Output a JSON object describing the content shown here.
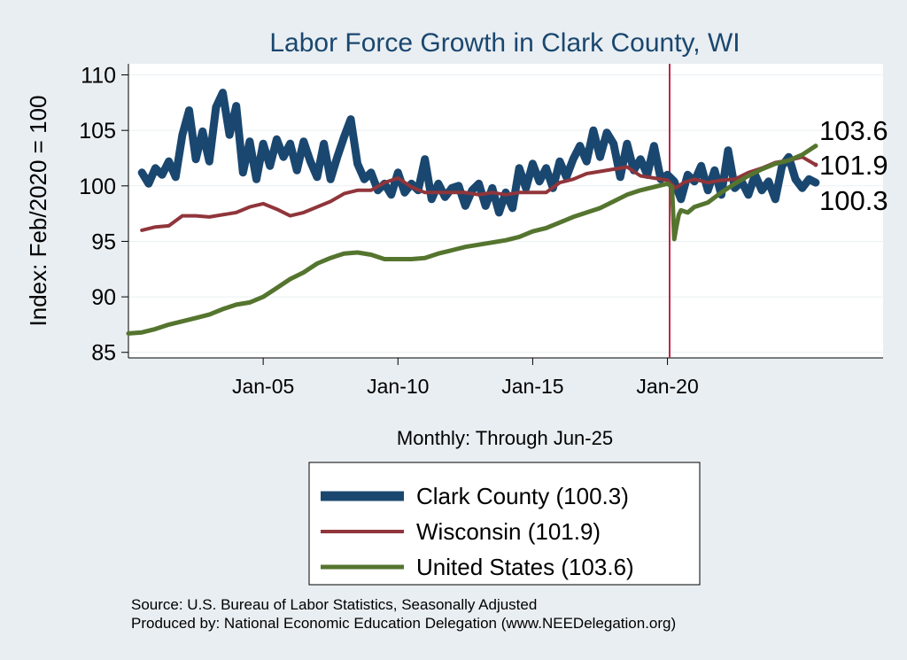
{
  "chart_data": {
    "type": "line",
    "title": "Labor Force Growth in Clark  County, WI",
    "ylabel": "Index: Feb/2020 = 100",
    "xlabel": "Monthly: Through Jun-25",
    "ylim": [
      84.5,
      111
    ],
    "y_ticks": [
      85,
      90,
      95,
      100,
      105,
      110
    ],
    "xlim": [
      2000.0,
      2028.0
    ],
    "x_ticks": [
      {
        "value": 2005.0,
        "label": "Jan-05"
      },
      {
        "value": 2010.0,
        "label": "Jan-10"
      },
      {
        "value": 2015.0,
        "label": "Jan-15"
      },
      {
        "value": 2020.0,
        "label": "Jan-20"
      }
    ],
    "vline": {
      "value": 2020.08,
      "color": "#c0264a"
    },
    "colors": {
      "background": "#e9eef2",
      "plot_bg": "#ffffff",
      "grid": "#eaf0f4"
    },
    "series": [
      {
        "name": "Clark  County",
        "legend_label": "Clark  County (100.3)",
        "end_label": "100.3",
        "color": "#1a476f",
        "width": 9,
        "x": [
          2000.5,
          2000.75,
          2001.0,
          2001.25,
          2001.5,
          2001.75,
          2002.0,
          2002.25,
          2002.5,
          2002.75,
          2003.0,
          2003.25,
          2003.5,
          2003.75,
          2004.0,
          2004.25,
          2004.5,
          2004.75,
          2005.0,
          2005.25,
          2005.5,
          2005.75,
          2006.0,
          2006.25,
          2006.5,
          2006.75,
          2007.0,
          2007.25,
          2007.5,
          2007.75,
          2008.0,
          2008.25,
          2008.5,
          2008.75,
          2009.0,
          2009.25,
          2009.5,
          2009.75,
          2010.0,
          2010.25,
          2010.5,
          2010.75,
          2011.0,
          2011.25,
          2011.5,
          2011.75,
          2012.0,
          2012.25,
          2012.5,
          2012.75,
          2013.0,
          2013.25,
          2013.5,
          2013.75,
          2014.0,
          2014.25,
          2014.5,
          2014.75,
          2015.0,
          2015.25,
          2015.5,
          2015.75,
          2016.0,
          2016.25,
          2016.5,
          2016.75,
          2017.0,
          2017.25,
          2017.5,
          2017.75,
          2018.0,
          2018.25,
          2018.5,
          2018.75,
          2019.0,
          2019.25,
          2019.5,
          2019.75,
          2020.0,
          2020.25,
          2020.5,
          2020.75,
          2021.0,
          2021.25,
          2021.5,
          2021.75,
          2022.0,
          2022.25,
          2022.5,
          2022.75,
          2023.0,
          2023.25,
          2023.5,
          2023.75,
          2024.0,
          2024.25,
          2024.5,
          2024.75,
          2025.0,
          2025.25,
          2025.5
        ],
        "values": [
          101.2,
          100.2,
          101.6,
          101.0,
          102.2,
          100.8,
          104.6,
          106.8,
          102.4,
          104.9,
          102.2,
          107.1,
          108.4,
          104.6,
          107.2,
          101.2,
          104.0,
          100.6,
          103.8,
          101.8,
          104.2,
          102.6,
          103.8,
          101.4,
          104.0,
          102.2,
          100.8,
          103.8,
          100.6,
          102.6,
          104.4,
          106.0,
          102.0,
          100.6,
          101.2,
          99.6,
          100.2,
          99.2,
          101.2,
          99.4,
          100.2,
          99.6,
          102.4,
          98.8,
          100.2,
          99.0,
          99.8,
          100.0,
          98.2,
          99.6,
          100.2,
          98.2,
          99.8,
          97.6,
          99.4,
          98.0,
          101.6,
          99.8,
          102.0,
          100.4,
          101.6,
          99.8,
          102.2,
          100.8,
          102.4,
          103.6,
          102.2,
          105.0,
          102.6,
          104.8,
          103.8,
          100.8,
          103.8,
          101.4,
          102.4,
          101.0,
          103.6,
          100.6,
          101.0,
          100.4,
          98.8,
          101.0,
          100.4,
          101.8,
          99.6,
          101.4,
          99.2,
          103.2,
          99.8,
          100.4,
          99.2,
          101.0,
          99.6,
          100.4,
          98.8,
          101.8,
          102.6,
          100.6,
          99.8,
          100.6,
          100.3
        ]
      },
      {
        "name": "Wisconsin",
        "legend_label": "Wisconsin (101.9)",
        "end_label": "101.9",
        "color": "#90353b",
        "width": 4,
        "x": [
          2000.5,
          2001.0,
          2001.5,
          2002.0,
          2002.5,
          2003.0,
          2003.5,
          2004.0,
          2004.5,
          2005.0,
          2005.5,
          2006.0,
          2006.5,
          2007.0,
          2007.5,
          2008.0,
          2008.5,
          2009.0,
          2009.5,
          2010.0,
          2010.5,
          2011.0,
          2011.5,
          2012.0,
          2012.5,
          2013.0,
          2013.5,
          2014.0,
          2014.5,
          2015.0,
          2015.5,
          2016.0,
          2016.5,
          2017.0,
          2017.5,
          2018.0,
          2018.5,
          2019.0,
          2019.5,
          2020.0,
          2020.3,
          2020.6,
          2021.0,
          2021.5,
          2022.0,
          2022.5,
          2023.0,
          2023.5,
          2024.0,
          2024.5,
          2025.0,
          2025.5
        ],
        "values": [
          96.0,
          96.3,
          96.4,
          97.3,
          97.3,
          97.2,
          97.4,
          97.6,
          98.1,
          98.4,
          97.9,
          97.3,
          97.6,
          98.1,
          98.6,
          99.3,
          99.6,
          99.6,
          100.3,
          100.7,
          99.9,
          99.4,
          99.4,
          99.4,
          99.4,
          99.2,
          99.4,
          99.2,
          99.4,
          99.4,
          99.4,
          100.3,
          100.6,
          101.1,
          101.3,
          101.5,
          101.7,
          100.9,
          100.7,
          100.5,
          99.8,
          100.3,
          100.6,
          100.3,
          100.5,
          100.6,
          101.2,
          101.6,
          102.1,
          102.3,
          102.6,
          101.9
        ]
      },
      {
        "name": "United States",
        "legend_label": "United States (103.6)",
        "end_label": "103.6",
        "color": "#55752f",
        "width": 5,
        "x": [
          2000.0,
          2000.5,
          2001.0,
          2001.5,
          2002.0,
          2002.5,
          2003.0,
          2003.5,
          2004.0,
          2004.5,
          2005.0,
          2005.5,
          2006.0,
          2006.5,
          2007.0,
          2007.5,
          2008.0,
          2008.5,
          2009.0,
          2009.5,
          2010.0,
          2010.5,
          2011.0,
          2011.5,
          2012.0,
          2012.5,
          2013.0,
          2013.5,
          2014.0,
          2014.5,
          2015.0,
          2015.5,
          2016.0,
          2016.5,
          2017.0,
          2017.5,
          2018.0,
          2018.5,
          2019.0,
          2019.5,
          2020.0,
          2020.17,
          2020.25,
          2020.33,
          2020.42,
          2020.5,
          2020.75,
          2021.0,
          2021.5,
          2022.0,
          2022.5,
          2023.0,
          2023.5,
          2024.0,
          2024.5,
          2025.0,
          2025.5
        ],
        "values": [
          86.7,
          86.8,
          87.1,
          87.5,
          87.8,
          88.1,
          88.4,
          88.9,
          89.3,
          89.5,
          90.0,
          90.8,
          91.6,
          92.2,
          93.0,
          93.5,
          93.9,
          94.0,
          93.8,
          93.4,
          93.4,
          93.4,
          93.5,
          93.9,
          94.2,
          94.5,
          94.7,
          94.9,
          95.1,
          95.4,
          95.9,
          96.2,
          96.7,
          97.2,
          97.6,
          98.0,
          98.6,
          99.2,
          99.6,
          99.9,
          100.2,
          99.9,
          95.2,
          96.3,
          97.4,
          97.8,
          97.6,
          98.1,
          98.5,
          99.4,
          100.2,
          100.9,
          101.5,
          102.0,
          102.3,
          102.8,
          103.6
        ]
      }
    ],
    "legend": {
      "position": "bottom"
    }
  },
  "source_note": "Source: U.S. Bureau of Labor Statistics, Seasonally Adjusted",
  "producer_note": "Produced by: National Economic Education Delegation (www.NEEDelegation.org)"
}
